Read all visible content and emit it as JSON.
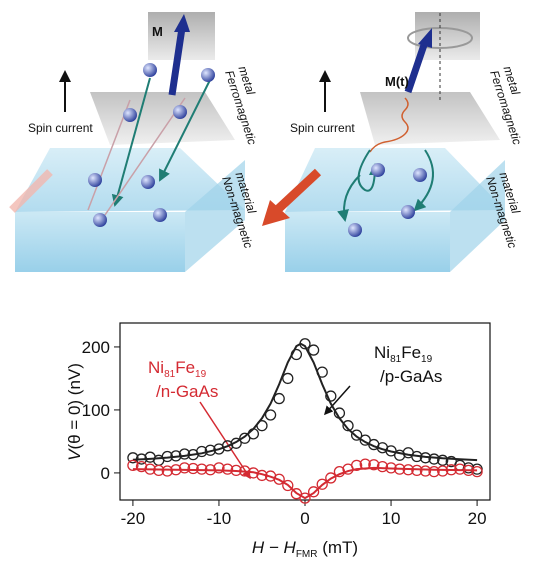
{
  "diagrams": [
    {
      "magnetization": "M",
      "spin_current": "Spin current",
      "ferromagnet": [
        "Ferromagnetic",
        "metal"
      ],
      "nonmagnet": [
        "Non-magnetic",
        "material"
      ]
    },
    {
      "magnetization": "M(t)",
      "spin_current": "Spin current",
      "ferromagnet": [
        "Ferromagnetic",
        "metal"
      ],
      "nonmagnet": [
        "Non-magnetic",
        "material"
      ]
    }
  ],
  "chart_data": {
    "type": "scatter",
    "xlabel": [
      "H − H",
      "FMR",
      " (mT)"
    ],
    "ylabel": [
      "V",
      "(θ = 0) (nV)"
    ],
    "annotations": [
      [
        [
          "Ni",
          "81",
          "Fe",
          "19"
        ],
        [
          "/p-GaAs"
        ]
      ],
      [
        [
          "Ni",
          "81",
          "Fe",
          "19"
        ],
        [
          "/n-GaAs"
        ]
      ]
    ],
    "xlim": [
      -21.5,
      21.5
    ],
    "xticks": [
      -20,
      -10,
      0,
      10,
      20
    ],
    "ylim": [
      -43,
      238
    ],
    "yticks": [
      0,
      100,
      200
    ],
    "series": [
      {
        "color": "#222222",
        "marker": "circle",
        "x": [
          -20,
          -19,
          -18,
          -17,
          -16,
          -15,
          -14,
          -13,
          -12,
          -11,
          -10,
          -9,
          -8,
          -7,
          -6,
          -5,
          -4,
          -3,
          -2,
          -1,
          0,
          1,
          2,
          3,
          4,
          5,
          6,
          7,
          8,
          9,
          10,
          11,
          12,
          13,
          14,
          15,
          16,
          17,
          18,
          19,
          20
        ],
        "values": [
          24,
          22,
          25,
          20,
          26,
          27,
          30,
          29,
          34,
          36,
          38,
          43,
          47,
          55,
          62,
          75,
          92,
          118,
          150,
          188,
          205,
          195,
          160,
          122,
          95,
          75,
          60,
          52,
          45,
          40,
          35,
          28,
          32,
          26,
          24,
          22,
          20,
          18,
          12,
          8,
          6
        ]
      },
      {
        "color": "#222222",
        "marker": "line",
        "x": [
          -20,
          -18,
          -16,
          -14,
          -12,
          -10,
          -9,
          -8,
          -7,
          -6,
          -5,
          -4,
          -3,
          -2,
          -1,
          -0.5,
          0,
          1,
          2,
          3,
          4,
          5,
          6,
          7,
          8,
          9,
          10,
          12,
          14,
          16,
          18,
          20
        ],
        "values": [
          20.9,
          22.3,
          24.2,
          27,
          31.1,
          37.7,
          42.5,
          49,
          57.7,
          69.8,
          86.7,
          110,
          140.8,
          175.5,
          201.3,
          205,
          201.3,
          175.5,
          140.8,
          110,
          86.7,
          69.8,
          57.7,
          49,
          42.5,
          37.7,
          34,
          28.8,
          25.5,
          23.2,
          21.6,
          20.4
        ]
      },
      {
        "color": "#d42a32",
        "marker": "circle",
        "x": [
          -20,
          -19,
          -18,
          -17,
          -16,
          -15,
          -14,
          -13,
          -12,
          -11,
          -10,
          -9,
          -8,
          -7,
          -6,
          -5,
          -4,
          -3,
          -2,
          -1,
          0,
          1,
          2,
          3,
          4,
          5,
          6,
          7,
          8,
          9,
          10,
          11,
          12,
          13,
          14,
          15,
          16,
          17,
          18,
          19,
          20
        ],
        "values": [
          12,
          10,
          6,
          4,
          3,
          5,
          8,
          7,
          6,
          5,
          8,
          6,
          4,
          3,
          0,
          -4,
          -5,
          -10,
          -20,
          -33,
          -40,
          -30,
          -18,
          -8,
          2,
          6,
          12,
          14,
          13,
          10,
          8,
          6,
          5,
          4,
          3,
          2,
          3,
          5,
          6,
          4,
          2
        ]
      },
      {
        "color": "#d42a32",
        "marker": "line",
        "x": [
          -20,
          -15,
          -10,
          -8,
          -6,
          -5,
          -4,
          -3,
          -2,
          -1,
          0,
          1,
          2,
          3,
          4,
          5,
          6,
          8,
          10,
          15,
          20
        ],
        "values": [
          6,
          5,
          4,
          3,
          1,
          -2,
          -6,
          -11,
          -19,
          -32,
          -40,
          -32,
          -19,
          -9,
          -2,
          3,
          6,
          8,
          7,
          5,
          4
        ]
      }
    ]
  }
}
